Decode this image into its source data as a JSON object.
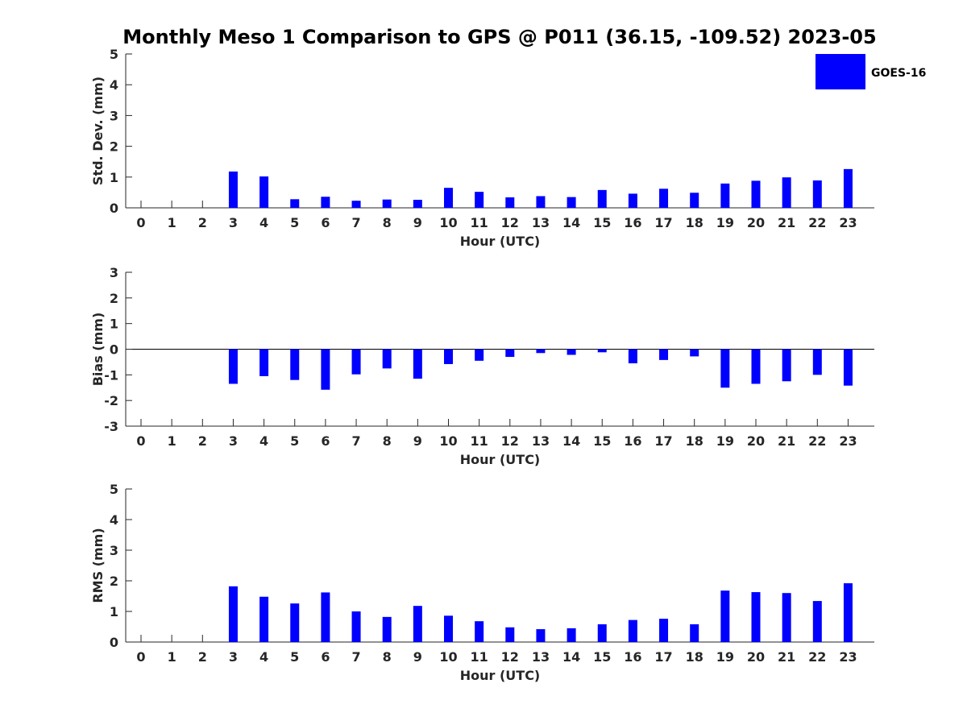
{
  "chart_data": [
    {
      "type": "bar",
      "title": "Monthly Meso 1 Comparison to GPS @ P011 (36.15, -109.52) 2023-05",
      "xlabel": "Hour (UTC)",
      "ylabel": "Std. Dev. (mm)",
      "ylim": [
        0,
        5
      ],
      "yticks": [
        "0",
        "1",
        "2",
        "3",
        "4",
        "5"
      ],
      "categories": [
        "0",
        "1",
        "2",
        "3",
        "4",
        "5",
        "6",
        "7",
        "8",
        "9",
        "10",
        "11",
        "12",
        "13",
        "14",
        "15",
        "16",
        "17",
        "18",
        "19",
        "20",
        "21",
        "22",
        "23"
      ],
      "series": [
        {
          "name": "GOES-16",
          "color": "#0000ff",
          "values": [
            null,
            null,
            null,
            1.18,
            1.02,
            0.28,
            0.36,
            0.23,
            0.27,
            0.26,
            0.65,
            0.52,
            0.34,
            0.38,
            0.35,
            0.58,
            0.46,
            0.62,
            0.49,
            0.79,
            0.88,
            0.99,
            0.89,
            1.26
          ]
        }
      ],
      "legend": {
        "label": "GOES-16",
        "position": "top-right"
      }
    },
    {
      "type": "bar",
      "xlabel": "Hour (UTC)",
      "ylabel": "Bias (mm)",
      "ylim": [
        -3,
        3
      ],
      "yticks": [
        "-3",
        "-2",
        "-1",
        "0",
        "1",
        "2",
        "3"
      ],
      "zero_line": true,
      "categories": [
        "0",
        "1",
        "2",
        "3",
        "4",
        "5",
        "6",
        "7",
        "8",
        "9",
        "10",
        "11",
        "12",
        "13",
        "14",
        "15",
        "16",
        "17",
        "18",
        "19",
        "20",
        "21",
        "22",
        "23"
      ],
      "series": [
        {
          "name": "GOES-16",
          "color": "#0000ff",
          "values": [
            null,
            null,
            null,
            -1.35,
            -1.05,
            -1.2,
            -1.58,
            -0.98,
            -0.75,
            -1.15,
            -0.58,
            -0.45,
            -0.3,
            -0.15,
            -0.22,
            -0.12,
            -0.55,
            -0.42,
            -0.28,
            -1.5,
            -1.35,
            -1.25,
            -1.0,
            -1.42
          ]
        }
      ]
    },
    {
      "type": "bar",
      "xlabel": "Hour (UTC)",
      "ylabel": "RMS (mm)",
      "ylim": [
        0,
        5
      ],
      "yticks": [
        "0",
        "1",
        "2",
        "3",
        "4",
        "5"
      ],
      "categories": [
        "0",
        "1",
        "2",
        "3",
        "4",
        "5",
        "6",
        "7",
        "8",
        "9",
        "10",
        "11",
        "12",
        "13",
        "14",
        "15",
        "16",
        "17",
        "18",
        "19",
        "20",
        "21",
        "22",
        "23"
      ],
      "series": [
        {
          "name": "GOES-16",
          "color": "#0000ff",
          "values": [
            null,
            null,
            null,
            1.82,
            1.48,
            1.26,
            1.62,
            1.0,
            0.82,
            1.18,
            0.86,
            0.68,
            0.48,
            0.42,
            0.45,
            0.58,
            0.72,
            0.76,
            0.58,
            1.68,
            1.63,
            1.6,
            1.34,
            1.92
          ]
        }
      ]
    }
  ]
}
